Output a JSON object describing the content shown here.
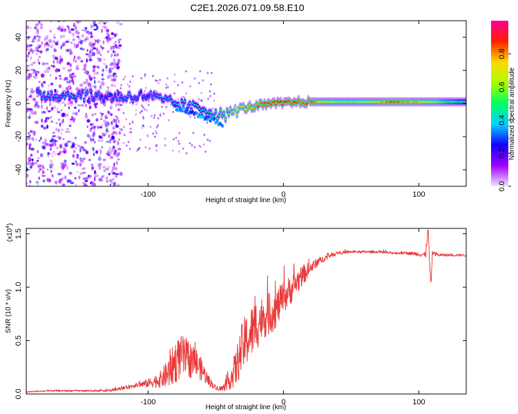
{
  "title": "C2E1.2026.071.09.58.E10",
  "chart_data": [
    {
      "type": "heatmap",
      "name": "spectrogram",
      "xlabel": "Height of straight line (km)",
      "ylabel": "Frequency (Hz)",
      "xlim": [
        -190,
        135
      ],
      "ylim": [
        -50,
        50
      ],
      "xticks": [
        -100,
        0,
        100
      ],
      "xtick_labels": [
        "-100",
        "0",
        "100"
      ],
      "yticks": [
        -40,
        -20,
        0,
        20,
        40
      ],
      "ytick_labels": [
        "-40",
        "-20",
        "0",
        "20",
        "40"
      ],
      "colorbar": {
        "label": "Normalized spectral amplitude",
        "range": [
          0,
          1
        ],
        "ticks": [
          0.0,
          0.2,
          0.4,
          0.6,
          0.8
        ],
        "tick_labels": [
          "0.0",
          "0.2",
          "0.4",
          "0.6",
          "0.8"
        ],
        "colors": [
          "#f0e4ff",
          "#a000ff",
          "#1400ff",
          "#00d2ff",
          "#00ff60",
          "#aaff00",
          "#ffd800",
          "#ff2000",
          "#ff0090"
        ]
      },
      "ridge": {
        "x": [
          -180,
          -150,
          -130,
          -115,
          -100,
          -90,
          -80,
          -70,
          -60,
          -50,
          -42,
          -35,
          -25,
          -15,
          -5,
          0,
          10,
          20,
          40,
          60,
          80,
          100,
          120,
          135
        ],
        "y": [
          5,
          5,
          4,
          4,
          5,
          2,
          0,
          -2,
          -3,
          -6,
          -7,
          -4,
          -2,
          -1,
          0,
          0,
          1,
          1,
          1,
          1,
          1,
          1,
          1,
          1
        ],
        "amplitude": [
          0.35,
          0.35,
          0.3,
          0.35,
          0.3,
          0.35,
          0.38,
          0.4,
          0.42,
          0.48,
          0.55,
          0.65,
          0.75,
          0.85,
          0.88,
          0.9,
          0.85,
          0.82,
          0.62,
          0.64,
          0.85,
          0.75,
          0.55,
          0.45
        ]
      }
    },
    {
      "type": "line",
      "name": "snr",
      "xlabel": "Height of straight line (km)",
      "ylabel": "SNR (10 * v/v)",
      "scale_label": "(x10",
      "scale_exponent": "4",
      "scale_close": ")",
      "xlim": [
        -190,
        135
      ],
      "ylim": [
        0,
        1.55
      ],
      "xticks": [
        -100,
        0,
        100
      ],
      "xtick_labels": [
        "-100",
        "0",
        "100"
      ],
      "yticks": [
        0.0,
        0.5,
        1.0,
        1.5
      ],
      "ytick_labels": [
        "0.0",
        "0.5",
        "1.0",
        "1.5"
      ],
      "line_color": "#e83a3a",
      "series": [
        {
          "name": "SNR",
          "x": [
            -190,
            -170,
            -150,
            -130,
            -120,
            -110,
            -100,
            -90,
            -85,
            -80,
            -75,
            -70,
            -65,
            -60,
            -55,
            -50,
            -45,
            -40,
            -35,
            -30,
            -25,
            -20,
            -15,
            -10,
            -5,
            0,
            5,
            10,
            15,
            20,
            25,
            30,
            35,
            40,
            50,
            60,
            70,
            80,
            90,
            100,
            105,
            106,
            107,
            108,
            109,
            110,
            115,
            120,
            130,
            135
          ],
          "y": [
            0.02,
            0.03,
            0.03,
            0.03,
            0.05,
            0.08,
            0.1,
            0.14,
            0.2,
            0.3,
            0.35,
            0.33,
            0.3,
            0.22,
            0.12,
            0.06,
            0.05,
            0.12,
            0.25,
            0.45,
            0.55,
            0.65,
            0.72,
            0.75,
            0.8,
            0.9,
            0.97,
            1.05,
            1.12,
            1.18,
            1.23,
            1.27,
            1.3,
            1.32,
            1.33,
            1.33,
            1.33,
            1.32,
            1.32,
            1.31,
            1.3,
            1.45,
            1.52,
            1.2,
            1.0,
            1.32,
            1.3,
            1.3,
            1.3,
            1.3
          ],
          "noise": [
            0.005,
            0.008,
            0.008,
            0.01,
            0.015,
            0.02,
            0.04,
            0.08,
            0.15,
            0.2,
            0.2,
            0.18,
            0.15,
            0.1,
            0.05,
            0.02,
            0.03,
            0.08,
            0.18,
            0.25,
            0.25,
            0.25,
            0.2,
            0.2,
            0.18,
            0.15,
            0.14,
            0.12,
            0.09,
            0.06,
            0.04,
            0.03,
            0.02,
            0.015,
            0.012,
            0.012,
            0.012,
            0.012,
            0.012,
            0.02,
            0.03,
            0.05,
            0.05,
            0.05,
            0.05,
            0.02,
            0.015,
            0.012,
            0.012,
            0.012
          ]
        }
      ]
    }
  ]
}
